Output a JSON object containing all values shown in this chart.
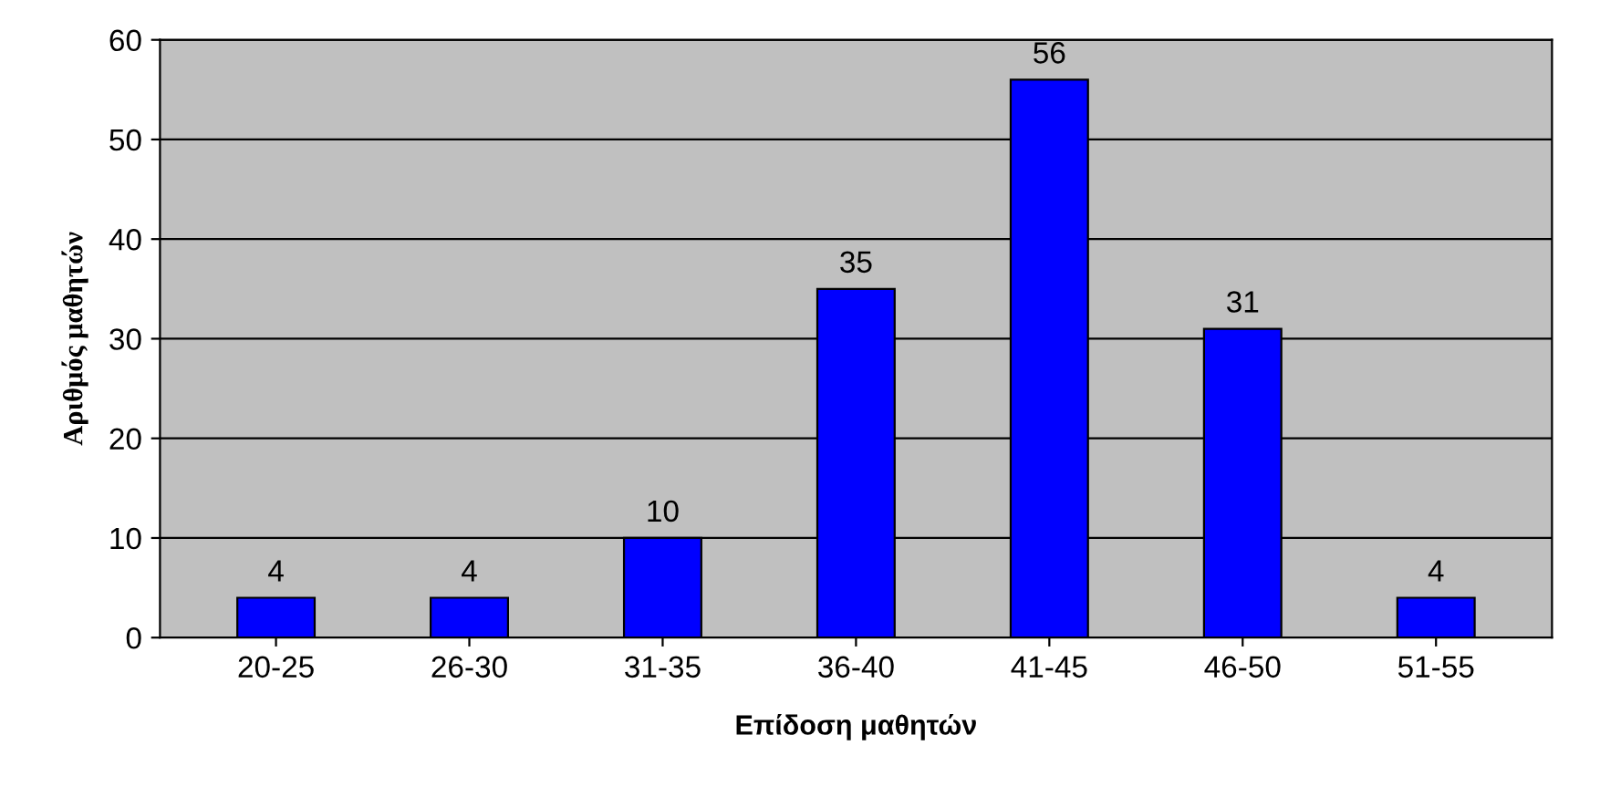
{
  "chart_data": {
    "type": "bar",
    "xlabel": "Επίδοση μαθητών",
    "ylabel": "Αριθμός μαθητών",
    "categories": [
      "20-25",
      "26-30",
      "31-35",
      "36-40",
      "41-45",
      "46-50",
      "51-55"
    ],
    "values": [
      4,
      4,
      10,
      35,
      56,
      31,
      4
    ],
    "color": "#0000ff",
    "ylim": [
      0,
      60
    ],
    "yticks": [
      0,
      10,
      20,
      30,
      40,
      50,
      60
    ],
    "grid": "y",
    "data_labels": true
  }
}
